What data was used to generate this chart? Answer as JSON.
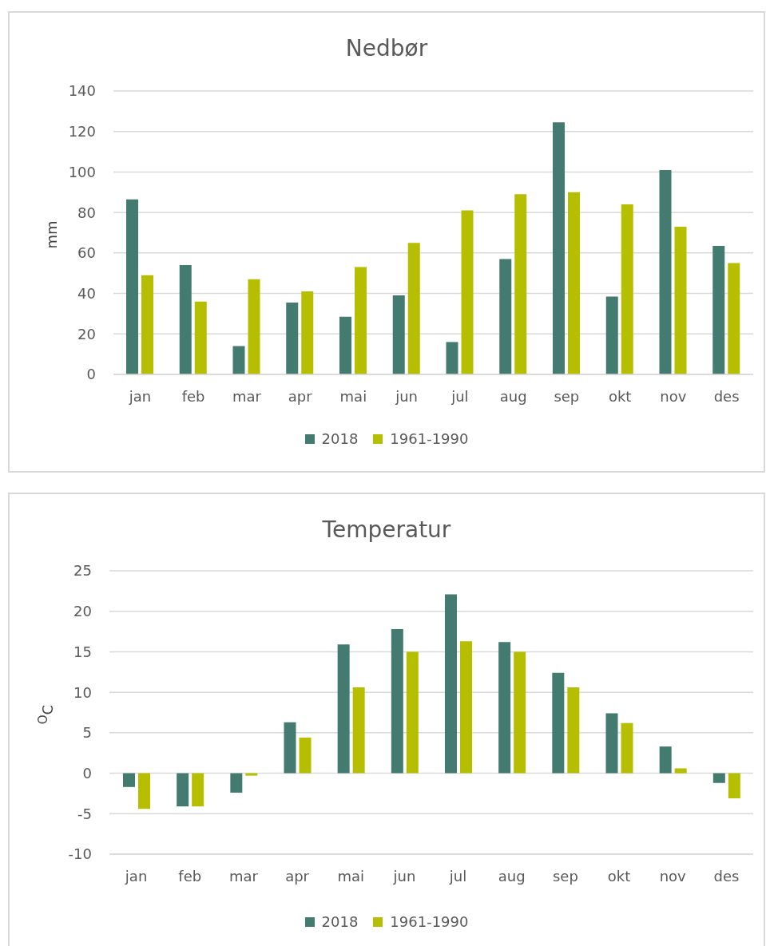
{
  "chart_data": [
    {
      "type": "bar",
      "title": "Nedbør",
      "ylabel": "mm",
      "categories": [
        "jan",
        "feb",
        "mar",
        "apr",
        "mai",
        "jun",
        "jul",
        "aug",
        "sep",
        "okt",
        "nov",
        "des"
      ],
      "series": [
        {
          "name": "2018",
          "color": "#447b71",
          "values": [
            86.5,
            54,
            14,
            35.5,
            28.5,
            39,
            16,
            57,
            124.5,
            38.5,
            101,
            63.5
          ]
        },
        {
          "name": "1961-1990",
          "color": "#b5bf00",
          "values": [
            49,
            36,
            47,
            41,
            53,
            65,
            81,
            89,
            90,
            84,
            73,
            55
          ]
        }
      ],
      "ylim": [
        0,
        140
      ],
      "yticks": [
        0,
        20,
        40,
        60,
        80,
        100,
        120,
        140
      ],
      "grid": "y",
      "legend": "bottom"
    },
    {
      "type": "bar",
      "title": "Temperatur",
      "ylabel": "$^{O}$C",
      "categories": [
        "jan",
        "feb",
        "mar",
        "apr",
        "mai",
        "jun",
        "jul",
        "aug",
        "sep",
        "okt",
        "nov",
        "des"
      ],
      "series": [
        {
          "name": "2018",
          "color": "#447b71",
          "values": [
            -1.7,
            -4.1,
            -2.4,
            6.3,
            15.9,
            17.8,
            22.1,
            16.2,
            12.4,
            7.4,
            3.3,
            -1.2
          ]
        },
        {
          "name": "1961-1990",
          "color": "#b5bf00",
          "values": [
            -4.4,
            -4.1,
            -0.3,
            4.4,
            10.6,
            15.0,
            16.3,
            15.0,
            10.6,
            6.2,
            0.6,
            -3.1
          ]
        }
      ],
      "ylim": [
        -10,
        25
      ],
      "yticks": [
        -10,
        -5,
        0,
        5,
        10,
        15,
        20,
        25
      ],
      "grid": "y",
      "legend": "bottom"
    }
  ]
}
